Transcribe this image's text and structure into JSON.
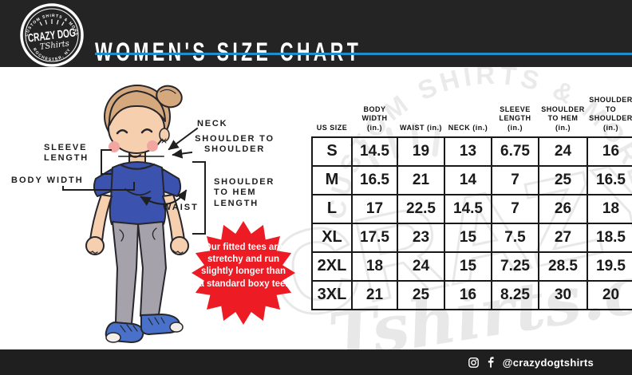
{
  "header": {
    "title": "WOMEN'S SIZE CHART",
    "logo": {
      "name": "CRAZY DOG",
      "script": "TShirts",
      "arc_top": "CUSTOM SHIRTS & MORE",
      "arc_bottom": "ROCHESTER, NY"
    }
  },
  "colors": {
    "accent_blue": "#1e8fcc",
    "badge_red": "#ed1b24",
    "header_bg": "#242424",
    "shirt_blue": "#3b52ae"
  },
  "diagram": {
    "labels": {
      "neck": "NECK",
      "shoulder_to_shoulder": "SHOULDER TO\nSHOULDER",
      "sleeve_length": "SLEEVE\nLENGTH",
      "body_width": "BODY WIDTH",
      "waist": "WAIST",
      "shoulder_to_hem": "SHOULDER\nTO HEM\nLENGTH"
    },
    "note": "Our fitted tees are stretchy and run slightly longer than a standard boxy tee.",
    "note_color": "#ed1b24"
  },
  "size_table": {
    "columns": [
      "US SIZE",
      "BODY\nWIDTH\n(in.)",
      "WAIST (in.)",
      "NECK (in.)",
      "SLEEVE\nLENGTH\n(in.)",
      "SHOULDER\nTO HEM\n(in.)",
      "SHOULDER TO\nSHOULDER\n(in.)"
    ],
    "rows": [
      [
        "S",
        "14.5",
        "19",
        "13",
        "6.75",
        "24",
        "16"
      ],
      [
        "M",
        "16.5",
        "21",
        "14",
        "7",
        "25",
        "16.5"
      ],
      [
        "L",
        "17",
        "22.5",
        "14.5",
        "7",
        "26",
        "18"
      ],
      [
        "XL",
        "17.5",
        "23",
        "15",
        "7.5",
        "27",
        "18.5"
      ],
      [
        "2XL",
        "18",
        "24",
        "15",
        "7.25",
        "28.5",
        "19.5"
      ],
      [
        "3XL",
        "21",
        "25",
        "16",
        "8.25",
        "30",
        "20"
      ]
    ]
  },
  "watermark": {
    "arc_text": "CUSTOM SHIRTS & MORE",
    "big_text": "CRAZY",
    "script_text": "Tshirts.com"
  },
  "footer": {
    "social_handle": "@crazydogtshirts"
  }
}
